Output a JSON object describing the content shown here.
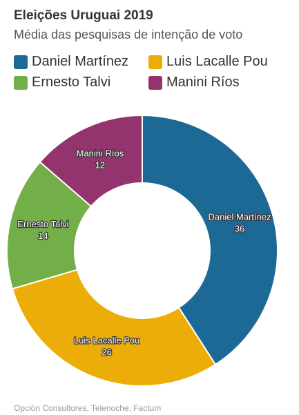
{
  "title": "Eleições Uruguai 2019",
  "subtitle": "Média das pesquisas de intenção de voto",
  "source": "Opción Consultores, Telenoche, Factum",
  "chart_data": {
    "type": "pie",
    "donut": true,
    "categories": [
      "Daniel Martínez",
      "Luis Lacalle Pou",
      "Ernesto Talvi",
      "Manini Ríos"
    ],
    "values": [
      36,
      26,
      14,
      12
    ],
    "colors": [
      "#1d6996",
      "#edad08",
      "#73af48",
      "#94346e"
    ],
    "legend": "top"
  }
}
